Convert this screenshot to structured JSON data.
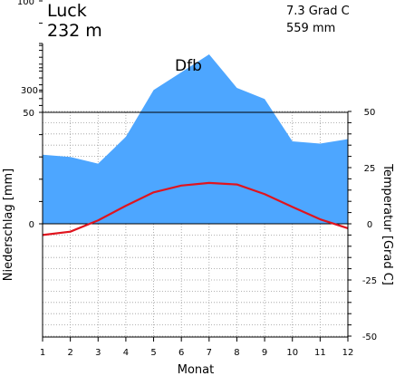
{
  "station": {
    "name": "Luck",
    "elevation": "232 m",
    "mean_temperature": "7.3 Grad C",
    "annual_precipitation": "559 mm",
    "climate_class": "Dfb"
  },
  "chart_data": {
    "type": "area",
    "title": "Luck",
    "xlabel": "Monat",
    "ylabel": "Niederschlag [mm]",
    "y2label": "Temperatur [Grad C]",
    "categories": [
      "1",
      "2",
      "3",
      "4",
      "5",
      "6",
      "7",
      "8",
      "9",
      "10",
      "11",
      "12"
    ],
    "series": [
      {
        "kind": "area",
        "axis": "left",
        "color": "#4da6ff",
        "values": [
          31,
          30,
          27,
          39,
          60,
          68,
          76,
          61,
          56,
          37,
          36,
          38
        ]
      },
      {
        "kind": "line",
        "axis": "right",
        "color": "#e0141e",
        "values": [
          -5,
          -3.5,
          1.5,
          8,
          14,
          17,
          18.2,
          17.5,
          13.2,
          7.5,
          2,
          -2
        ]
      }
    ],
    "left_axis": {
      "range": [
        0,
        100
      ],
      "ticks": [
        {
          "value": 0,
          "label": "0"
        },
        {
          "value": 50,
          "label": "50"
        },
        {
          "value": 100,
          "label": "100"
        }
      ]
    },
    "left_axis_upper": {
      "ticks": [
        {
          "value": 300,
          "label": "300"
        }
      ]
    },
    "right_axis": {
      "range": [
        -50,
        50
      ],
      "ticks": [
        {
          "value": 50,
          "label": "50"
        },
        {
          "value": 25,
          "label": "25"
        },
        {
          "value": 0,
          "label": "0"
        },
        {
          "value": -25,
          "label": "-25"
        },
        {
          "value": -50,
          "label": "-50"
        }
      ]
    },
    "grid": true
  }
}
